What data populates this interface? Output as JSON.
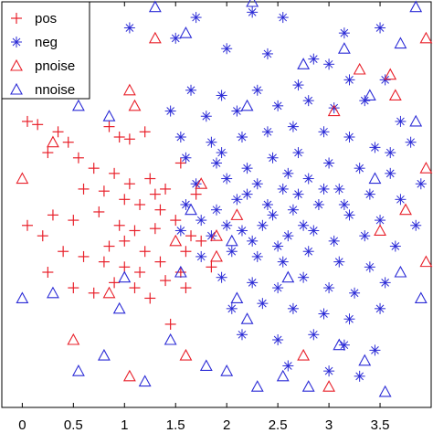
{
  "chart_data": {
    "type": "scatter",
    "title": "",
    "xlabel": "",
    "ylabel": "",
    "xlim": [
      -0.2,
      4.0
    ],
    "ylim": [
      -0.1,
      3.8
    ],
    "x_ticks": [
      0,
      0.5,
      1,
      1.5,
      2,
      2.5,
      3,
      3.5
    ],
    "x_tick_labels": [
      "0",
      "0.5",
      "1",
      "1.5",
      "2",
      "2.5",
      "3",
      "3.5"
    ],
    "grid": false,
    "legend_position": "top-left",
    "series": [
      {
        "name": "pos",
        "marker": "plus",
        "color": "#e8202a",
        "points": [
          [
            0.05,
            2.65
          ],
          [
            0.15,
            2.62
          ],
          [
            0.35,
            2.55
          ],
          [
            0.45,
            2.45
          ],
          [
            0.25,
            2.35
          ],
          [
            0.55,
            2.3
          ],
          [
            0.85,
            2.6
          ],
          [
            0.95,
            2.5
          ],
          [
            1.05,
            2.48
          ],
          [
            1.2,
            2.55
          ],
          [
            0.7,
            2.2
          ],
          [
            0.9,
            2.15
          ],
          [
            1.05,
            2.05
          ],
          [
            1.25,
            2.1
          ],
          [
            1.4,
            2.0
          ],
          [
            0.6,
            2.0
          ],
          [
            0.8,
            1.98
          ],
          [
            1.0,
            1.9
          ],
          [
            1.15,
            1.85
          ],
          [
            1.35,
            1.8
          ],
          [
            0.3,
            1.75
          ],
          [
            0.5,
            1.7
          ],
          [
            0.75,
            1.78
          ],
          [
            0.95,
            1.65
          ],
          [
            1.1,
            1.6
          ],
          [
            1.3,
            1.62
          ],
          [
            1.5,
            1.7
          ],
          [
            1.65,
            1.55
          ],
          [
            1.75,
            1.5
          ],
          [
            0.05,
            1.65
          ],
          [
            0.2,
            1.55
          ],
          [
            0.4,
            1.4
          ],
          [
            0.6,
            1.35
          ],
          [
            0.8,
            1.3
          ],
          [
            1.0,
            1.25
          ],
          [
            1.2,
            1.4
          ],
          [
            1.35,
            1.3
          ],
          [
            1.55,
            1.2
          ],
          [
            0.9,
            1.1
          ],
          [
            1.1,
            1.05
          ],
          [
            1.4,
            1.12
          ],
          [
            1.6,
            1.05
          ],
          [
            0.7,
            1.0
          ],
          [
            0.5,
            1.05
          ],
          [
            1.25,
            0.95
          ],
          [
            1.45,
            0.7
          ],
          [
            1.0,
            1.5
          ],
          [
            1.6,
            1.4
          ],
          [
            1.85,
            1.25
          ],
          [
            1.7,
            1.95
          ],
          [
            1.55,
            2.25
          ],
          [
            1.3,
            1.95
          ],
          [
            0.25,
            1.2
          ],
          [
            0.85,
            1.45
          ],
          [
            1.15,
            1.2
          ]
        ]
      },
      {
        "name": "neg",
        "marker": "star",
        "color": "#2b2bd6",
        "points": [
          [
            1.05,
            3.55
          ],
          [
            1.5,
            3.45
          ],
          [
            1.7,
            3.65
          ],
          [
            2.25,
            3.7
          ],
          [
            2.55,
            3.65
          ],
          [
            3.15,
            3.5
          ],
          [
            3.5,
            3.55
          ],
          [
            2.0,
            3.35
          ],
          [
            2.4,
            3.3
          ],
          [
            2.85,
            3.25
          ],
          [
            3.0,
            3.2
          ],
          [
            3.2,
            3.05
          ],
          [
            2.7,
            3.0
          ],
          [
            2.3,
            2.95
          ],
          [
            1.95,
            2.9
          ],
          [
            1.65,
            2.95
          ],
          [
            1.45,
            2.75
          ],
          [
            1.8,
            2.7
          ],
          [
            2.1,
            2.75
          ],
          [
            2.5,
            2.8
          ],
          [
            2.8,
            2.85
          ],
          [
            3.05,
            2.78
          ],
          [
            3.35,
            2.85
          ],
          [
            3.55,
            3.05
          ],
          [
            3.7,
            2.65
          ],
          [
            1.55,
            2.5
          ],
          [
            1.85,
            2.45
          ],
          [
            2.15,
            2.5
          ],
          [
            2.4,
            2.55
          ],
          [
            2.65,
            2.6
          ],
          [
            2.95,
            2.55
          ],
          [
            3.2,
            2.5
          ],
          [
            3.45,
            2.4
          ],
          [
            3.8,
            2.45
          ],
          [
            1.6,
            2.3
          ],
          [
            1.9,
            2.25
          ],
          [
            2.2,
            2.2
          ],
          [
            2.45,
            2.3
          ],
          [
            2.7,
            2.35
          ],
          [
            3.0,
            2.25
          ],
          [
            3.3,
            2.2
          ],
          [
            3.6,
            2.15
          ],
          [
            1.7,
            2.05
          ],
          [
            2.0,
            2.1
          ],
          [
            2.3,
            2.05
          ],
          [
            2.55,
            2.0
          ],
          [
            2.8,
            2.1
          ],
          [
            3.1,
            2.0
          ],
          [
            3.4,
            1.95
          ],
          [
            3.7,
            1.9
          ],
          [
            1.6,
            1.85
          ],
          [
            1.9,
            1.8
          ],
          [
            2.1,
            1.9
          ],
          [
            2.4,
            1.85
          ],
          [
            2.65,
            1.8
          ],
          [
            2.9,
            1.85
          ],
          [
            3.2,
            1.75
          ],
          [
            3.5,
            1.7
          ],
          [
            3.85,
            1.65
          ],
          [
            1.55,
            1.6
          ],
          [
            1.85,
            1.55
          ],
          [
            2.15,
            1.6
          ],
          [
            2.35,
            1.65
          ],
          [
            2.6,
            1.55
          ],
          [
            2.85,
            1.6
          ],
          [
            3.05,
            1.5
          ],
          [
            3.35,
            1.55
          ],
          [
            3.65,
            1.45
          ],
          [
            1.75,
            1.35
          ],
          [
            2.05,
            1.4
          ],
          [
            2.3,
            1.35
          ],
          [
            2.55,
            1.3
          ],
          [
            2.8,
            1.4
          ],
          [
            3.1,
            1.3
          ],
          [
            3.4,
            1.25
          ],
          [
            1.95,
            1.15
          ],
          [
            2.25,
            1.1
          ],
          [
            2.5,
            1.05
          ],
          [
            2.75,
            1.15
          ],
          [
            3.0,
            1.05
          ],
          [
            3.25,
            1.0
          ],
          [
            3.55,
            1.1
          ],
          [
            2.05,
            0.85
          ],
          [
            2.35,
            0.9
          ],
          [
            2.65,
            0.85
          ],
          [
            2.95,
            0.8
          ],
          [
            3.2,
            0.75
          ],
          [
            3.5,
            0.85
          ],
          [
            2.15,
            0.6
          ],
          [
            2.5,
            0.55
          ],
          [
            2.85,
            0.6
          ],
          [
            3.15,
            0.5
          ],
          [
            3.45,
            0.45
          ],
          [
            2.6,
            0.3
          ],
          [
            3.0,
            0.25
          ],
          [
            3.3,
            0.2
          ],
          [
            2.2,
            1.95
          ],
          [
            2.45,
            1.75
          ],
          [
            2.7,
            1.95
          ],
          [
            2.95,
            2.0
          ],
          [
            2.25,
            1.5
          ],
          [
            2.5,
            1.45
          ],
          [
            2.75,
            1.65
          ],
          [
            3.15,
            1.85
          ],
          [
            1.75,
            1.7
          ],
          [
            2.0,
            1.65
          ],
          [
            3.6,
            2.35
          ],
          [
            3.9,
            2.05
          ],
          [
            1.95,
            2.35
          ],
          [
            2.6,
            2.15
          ]
        ]
      },
      {
        "name": "pnoise",
        "marker": "triangle",
        "color": "#e8202a",
        "points": [
          [
            1.3,
            3.45
          ],
          [
            3.95,
            3.45
          ],
          [
            3.3,
            3.15
          ],
          [
            3.65,
            2.9
          ],
          [
            3.6,
            3.1
          ],
          [
            1.05,
            2.95
          ],
          [
            1.1,
            2.8
          ],
          [
            3.75,
            1.8
          ],
          [
            3.95,
            2.2
          ],
          [
            0.0,
            2.1
          ],
          [
            1.9,
            1.35
          ],
          [
            1.5,
            1.5
          ],
          [
            0.85,
            1.0
          ],
          [
            1.75,
            2.05
          ],
          [
            0.5,
            0.55
          ],
          [
            1.6,
            0.4
          ],
          [
            2.75,
            0.4
          ],
          [
            3.0,
            0.1
          ],
          [
            1.05,
            0.2
          ],
          [
            3.05,
            2.75
          ],
          [
            3.95,
            1.3
          ],
          [
            1.9,
            1.55
          ],
          [
            2.1,
            1.75
          ],
          [
            3.5,
            1.6
          ],
          [
            0.3,
            2.45
          ]
        ]
      },
      {
        "name": "nnoise",
        "marker": "triangle",
        "color": "#2b2bd6",
        "points": [
          [
            1.3,
            3.75
          ],
          [
            2.25,
            3.8
          ],
          [
            3.85,
            3.75
          ],
          [
            0.55,
            3.55
          ],
          [
            1.6,
            3.5
          ],
          [
            3.7,
            3.4
          ],
          [
            3.15,
            3.35
          ],
          [
            2.75,
            3.2
          ],
          [
            0.15,
            3.3
          ],
          [
            0.55,
            2.8
          ],
          [
            0.85,
            2.7
          ],
          [
            0.4,
            3.0
          ],
          [
            3.4,
            2.9
          ],
          [
            3.85,
            2.65
          ],
          [
            2.2,
            2.8
          ],
          [
            2.05,
            1.5
          ],
          [
            1.55,
            1.2
          ],
          [
            1.0,
            1.15
          ],
          [
            2.1,
            0.95
          ],
          [
            0.3,
            1.0
          ],
          [
            0.0,
            0.95
          ],
          [
            0.8,
            0.4
          ],
          [
            2.2,
            0.75
          ],
          [
            1.45,
            0.55
          ],
          [
            2.0,
            0.25
          ],
          [
            2.3,
            0.1
          ],
          [
            2.8,
            0.1
          ],
          [
            3.55,
            0.05
          ],
          [
            3.35,
            0.35
          ],
          [
            1.8,
            0.3
          ],
          [
            0.55,
            0.25
          ],
          [
            3.9,
            0.95
          ],
          [
            3.1,
            0.5
          ],
          [
            2.55,
            0.2
          ],
          [
            0.95,
            0.85
          ],
          [
            1.2,
            0.15
          ],
          [
            3.7,
            1.2
          ],
          [
            3.45,
            2.1
          ],
          [
            2.6,
            1.15
          ],
          [
            1.65,
            1.8
          ]
        ]
      }
    ]
  }
}
